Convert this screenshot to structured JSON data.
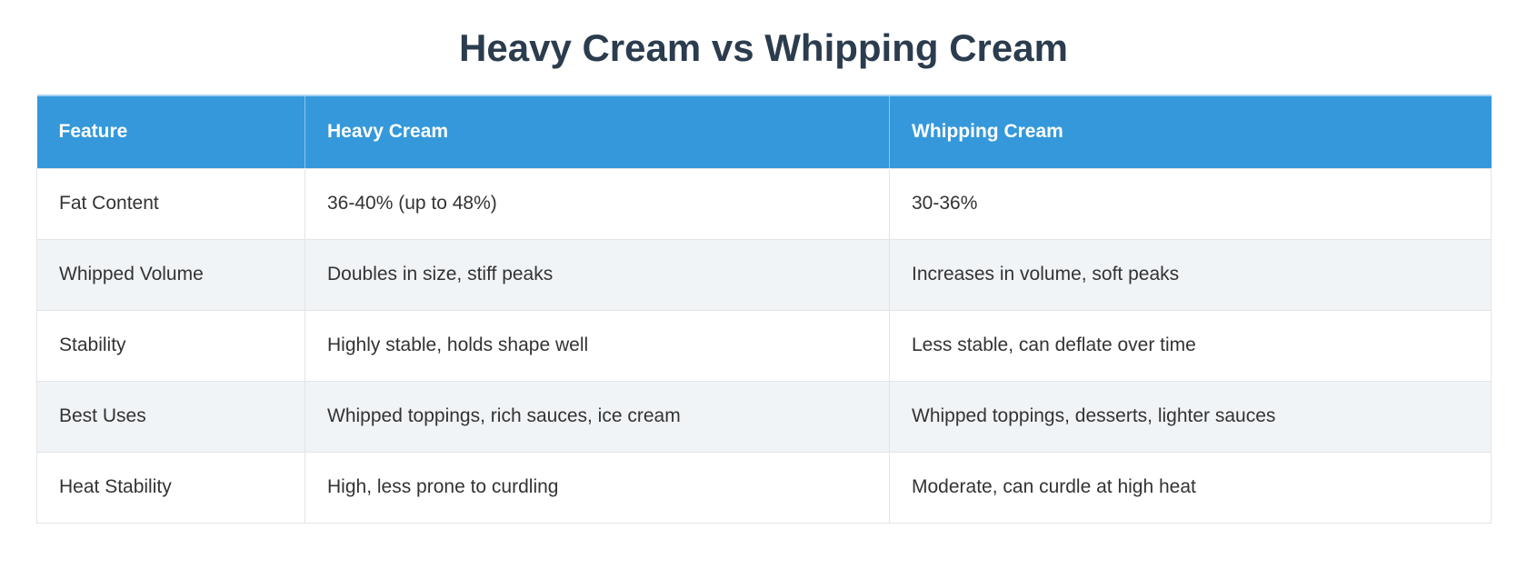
{
  "page": {
    "title": "Heavy Cream vs Whipping Cream"
  },
  "table": {
    "columns": [
      "Feature",
      "Heavy Cream",
      "Whipping Cream"
    ],
    "rows": [
      [
        "Fat Content",
        "36-40% (up to 48%)",
        "30-36%"
      ],
      [
        "Whipped Volume",
        "Doubles in size, stiff peaks",
        "Increases in volume, soft peaks"
      ],
      [
        "Stability",
        "Highly stable, holds shape well",
        "Less stable, can deflate over time"
      ],
      [
        "Best Uses",
        "Whipped toppings, rich sauces, ice cream",
        "Whipped toppings, desserts, lighter sauces"
      ],
      [
        "Heat Stability",
        "High, less prone to curdling",
        "Moderate, can curdle at high heat"
      ]
    ]
  },
  "colors": {
    "header_bg": "#3498db",
    "header_text": "#ffffff",
    "header_top_edge": "#a9d2f0",
    "row_bg": "#ffffff",
    "row_alt_bg": "#f1f4f7",
    "body_text": "#333333",
    "title_text": "#2b3c4e",
    "cell_border": "#e2e4e6"
  }
}
